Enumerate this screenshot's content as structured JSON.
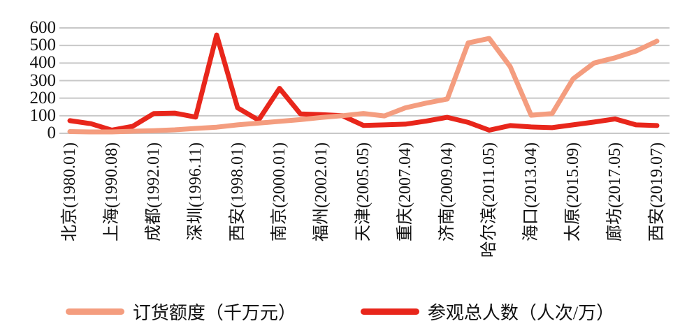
{
  "chart_data": {
    "type": "line",
    "title": "",
    "xlabel": "",
    "ylabel": "",
    "x_count": 29,
    "x_points_per_label": 2,
    "x_tick_labels": [
      "北京(1980.01)",
      "上海(1990.08)",
      "成都(1992.01)",
      "深圳(1996.11)",
      "西安(1998.01)",
      "南京(2000.01)",
      "福州(2002.01)",
      "天津(2005.05)",
      "重庆(2007.04)",
      "济南(2009.04)",
      "哈尔滨(2011.05)",
      "海口(2013.04)",
      "太原(2015.09)",
      "廊坊(2017.05)",
      "西安(2019.07)"
    ],
    "yticks": [
      0,
      100,
      200,
      300,
      400,
      500,
      600
    ],
    "ylim": [
      0,
      600
    ],
    "grid": true,
    "legend_position": "bottom",
    "series": [
      {
        "name": "订货额度（千万元）",
        "color": "#f49d7f",
        "values": [
          10,
          8,
          8,
          12,
          15,
          20,
          28,
          35,
          48,
          58,
          68,
          78,
          90,
          100,
          113,
          99,
          145,
          172,
          195,
          515,
          540,
          380,
          103,
          112,
          310,
          400,
          430,
          468,
          525
        ]
      },
      {
        "name": "参观总人数（人次/万）",
        "color": "#e8261b",
        "values": [
          72,
          55,
          18,
          40,
          112,
          115,
          92,
          560,
          145,
          75,
          256,
          110,
          106,
          100,
          45,
          48,
          52,
          70,
          91,
          62,
          18,
          44,
          36,
          32,
          48,
          64,
          82,
          48,
          44
        ]
      }
    ]
  },
  "colors": {
    "grid": "#c8c8c8",
    "background": "#ffffff",
    "text": "#111111"
  }
}
